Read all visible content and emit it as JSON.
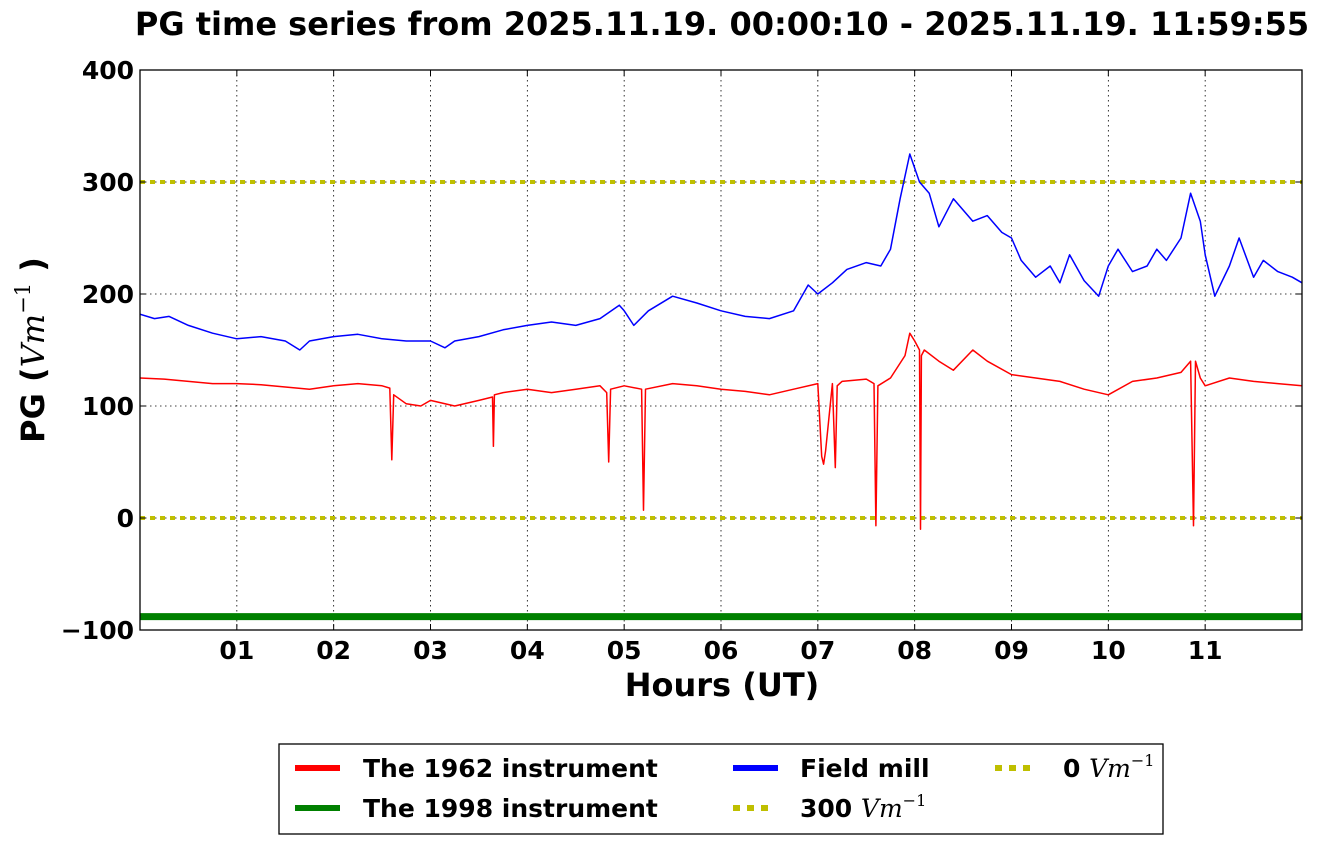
{
  "chart_data": {
    "type": "line",
    "title": "PG time series from 2025.11.19. 00:00:10 - 2025.11.19. 11:59:55",
    "xlabel": "Hours (UT)",
    "ylabel": {
      "prefix": "PG (",
      "unit_var": "Vm",
      "unit_exp": "−1",
      "suffix": ")"
    },
    "xlim": [
      0,
      12
    ],
    "ylim": [
      -100,
      400
    ],
    "x_ticks": [
      {
        "value": 1,
        "label": "01"
      },
      {
        "value": 2,
        "label": "02"
      },
      {
        "value": 3,
        "label": "03"
      },
      {
        "value": 4,
        "label": "04"
      },
      {
        "value": 5,
        "label": "05"
      },
      {
        "value": 6,
        "label": "06"
      },
      {
        "value": 7,
        "label": "07"
      },
      {
        "value": 8,
        "label": "08"
      },
      {
        "value": 9,
        "label": "09"
      },
      {
        "value": 10,
        "label": "10"
      },
      {
        "value": 11,
        "label": "11"
      }
    ],
    "y_ticks": [
      {
        "value": 400,
        "label": "400"
      },
      {
        "value": 300,
        "label": "300"
      },
      {
        "value": 200,
        "label": "200"
      },
      {
        "value": 100,
        "label": "100"
      },
      {
        "value": 0,
        "label": "0"
      },
      {
        "value": -100,
        "label": "−100"
      }
    ],
    "grid": true,
    "legend_placement": "bottom-center",
    "series": [
      {
        "name": "The 1962 instrument",
        "color": "#ff0000",
        "x": [
          0.0,
          0.25,
          0.5,
          0.75,
          1.0,
          1.25,
          1.5,
          1.75,
          2.0,
          2.25,
          2.5,
          2.58,
          2.6,
          2.62,
          2.75,
          2.9,
          3.0,
          3.25,
          3.5,
          3.64,
          3.65,
          3.66,
          3.75,
          4.0,
          4.25,
          4.5,
          4.75,
          4.82,
          4.84,
          4.86,
          5.0,
          5.18,
          5.2,
          5.22,
          5.5,
          5.75,
          6.0,
          6.25,
          6.5,
          6.75,
          7.0,
          7.04,
          7.06,
          7.08,
          7.15,
          7.18,
          7.2,
          7.25,
          7.5,
          7.58,
          7.6,
          7.62,
          7.75,
          7.9,
          7.95,
          8.0,
          8.05,
          8.06,
          8.07,
          8.1,
          8.25,
          8.4,
          8.6,
          8.75,
          9.0,
          9.25,
          9.5,
          9.75,
          10.0,
          10.25,
          10.5,
          10.75,
          10.85,
          10.88,
          10.9,
          10.95,
          11.0,
          11.25,
          11.5,
          11.75,
          12.0
        ],
        "y": [
          125,
          124,
          122,
          120,
          120,
          119,
          117,
          115,
          118,
          120,
          118,
          116,
          52,
          110,
          102,
          100,
          105,
          100,
          105,
          108,
          64,
          110,
          112,
          115,
          112,
          115,
          118,
          112,
          50,
          115,
          118,
          115,
          7,
          115,
          120,
          118,
          115,
          113,
          110,
          115,
          120,
          55,
          48,
          60,
          120,
          45,
          118,
          122,
          124,
          120,
          -7,
          118,
          125,
          145,
          165,
          158,
          150,
          -10,
          145,
          150,
          140,
          132,
          150,
          140,
          128,
          125,
          122,
          115,
          110,
          122,
          125,
          130,
          140,
          -7,
          140,
          125,
          118,
          125,
          122,
          120,
          118
        ]
      },
      {
        "name": "The 1998 instrument",
        "color": "#008000",
        "x": [
          0,
          12
        ],
        "y": [
          -88,
          -88
        ]
      },
      {
        "name": "Field mill",
        "color": "#0000ff",
        "x": [
          0.0,
          0.15,
          0.3,
          0.5,
          0.75,
          1.0,
          1.25,
          1.5,
          1.65,
          1.75,
          2.0,
          2.25,
          2.5,
          2.75,
          3.0,
          3.15,
          3.25,
          3.5,
          3.75,
          4.0,
          4.25,
          4.5,
          4.75,
          4.95,
          5.0,
          5.1,
          5.25,
          5.5,
          5.75,
          6.0,
          6.25,
          6.5,
          6.75,
          6.9,
          7.0,
          7.15,
          7.3,
          7.5,
          7.65,
          7.75,
          7.85,
          7.95,
          8.05,
          8.15,
          8.25,
          8.4,
          8.6,
          8.75,
          8.9,
          9.0,
          9.1,
          9.25,
          9.4,
          9.5,
          9.6,
          9.75,
          9.9,
          10.0,
          10.1,
          10.25,
          10.4,
          10.5,
          10.6,
          10.75,
          10.85,
          10.95,
          11.0,
          11.1,
          11.25,
          11.35,
          11.5,
          11.6,
          11.75,
          11.9,
          12.0
        ],
        "y": [
          182,
          178,
          180,
          172,
          165,
          160,
          162,
          158,
          150,
          158,
          162,
          164,
          160,
          158,
          158,
          152,
          158,
          162,
          168,
          172,
          175,
          172,
          178,
          190,
          185,
          172,
          185,
          198,
          192,
          185,
          180,
          178,
          185,
          208,
          200,
          210,
          222,
          228,
          225,
          240,
          285,
          325,
          300,
          290,
          260,
          285,
          265,
          270,
          255,
          250,
          230,
          215,
          225,
          210,
          235,
          212,
          198,
          225,
          240,
          220,
          225,
          240,
          230,
          250,
          290,
          265,
          235,
          198,
          225,
          250,
          215,
          230,
          220,
          215,
          210
        ]
      },
      {
        "name": "300 Vm−1",
        "label_value": "300",
        "label_unit": "Vm",
        "label_exp": "−1",
        "color": "#bfbf00",
        "style": "dotted",
        "x": [
          0,
          12
        ],
        "y": [
          300,
          300
        ]
      },
      {
        "name": "0 Vm−1",
        "label_value": "0",
        "label_unit": "Vm",
        "label_exp": "−1",
        "color": "#bfbf00",
        "style": "dotted",
        "x": [
          0,
          12
        ],
        "y": [
          0,
          0
        ]
      }
    ]
  }
}
